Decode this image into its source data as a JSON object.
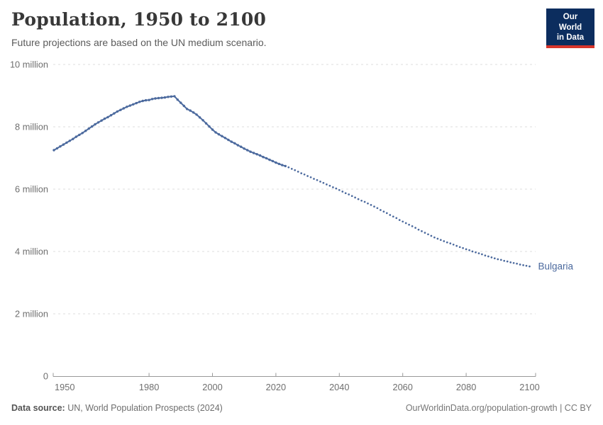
{
  "header": {
    "title": "Population, 1950 to 2100",
    "subtitle": "Future projections are based on the UN medium scenario.",
    "logo": {
      "line1": "Our World",
      "line2": "in Data",
      "bg_color": "#0C2D5E",
      "bar_color": "#D7352B"
    }
  },
  "footer": {
    "source_label": "Data source:",
    "source_text": " UN, World Population Prospects (2024)",
    "credit": "OurWorldinData.org/population-growth | CC BY"
  },
  "chart_data": {
    "type": "line",
    "title": "Population, 1950 to 2100",
    "subtitle": "Future projections are based on the UN medium scenario.",
    "entity": "Bulgaria",
    "end_label": "Bulgaria",
    "line_color": "#4C6A9E",
    "grid_color": "#dcdcdc",
    "axis_color": "#999999",
    "units": "people (millions)",
    "x_domain": [
      1950,
      2100
    ],
    "y_domain_millions": [
      0,
      10
    ],
    "x_ticks": [
      1950,
      1980,
      2000,
      2020,
      2040,
      2060,
      2080,
      2100
    ],
    "y_ticks": [
      {
        "value": 0,
        "label": "0"
      },
      {
        "value": 2,
        "label": "2 million"
      },
      {
        "value": 4,
        "label": "4 million"
      },
      {
        "value": 6,
        "label": "6 million"
      },
      {
        "value": 8,
        "label": "8 million"
      },
      {
        "value": 10,
        "label": "10 million"
      }
    ],
    "series": [
      {
        "name": "Bulgaria (estimates)",
        "style": "solid",
        "start_year": 1950,
        "values_millions": [
          7.25,
          7.31,
          7.37,
          7.43,
          7.49,
          7.55,
          7.61,
          7.68,
          7.74,
          7.8,
          7.87,
          7.94,
          8.01,
          8.08,
          8.14,
          8.2,
          8.26,
          8.31,
          8.37,
          8.43,
          8.49,
          8.54,
          8.59,
          8.64,
          8.68,
          8.72,
          8.76,
          8.8,
          8.83,
          8.85,
          8.86,
          8.89,
          8.91,
          8.92,
          8.93,
          8.94,
          8.96,
          8.97,
          8.98,
          8.87,
          8.77,
          8.67,
          8.57,
          8.52,
          8.46,
          8.39,
          8.3,
          8.21,
          8.11,
          8.01,
          7.91,
          7.82,
          7.76,
          7.7,
          7.64,
          7.58,
          7.52,
          7.47,
          7.41,
          7.36,
          7.3,
          7.25,
          7.2,
          7.16,
          7.12,
          7.08,
          7.03,
          6.99,
          6.94,
          6.9,
          6.85,
          6.81,
          6.77,
          6.74
        ]
      },
      {
        "name": "Bulgaria (UN medium projection)",
        "style": "dotted",
        "start_year": 2023,
        "values_millions": [
          6.74,
          6.7,
          6.65,
          6.61,
          6.56,
          6.51,
          6.47,
          6.42,
          6.38,
          6.33,
          6.29,
          6.24,
          6.2,
          6.15,
          6.11,
          6.06,
          6.02,
          5.97,
          5.92,
          5.87,
          5.83,
          5.78,
          5.73,
          5.68,
          5.63,
          5.59,
          5.54,
          5.49,
          5.44,
          5.39,
          5.33,
          5.28,
          5.23,
          5.17,
          5.12,
          5.07,
          5.01,
          4.96,
          4.91,
          4.86,
          4.81,
          4.76,
          4.7,
          4.65,
          4.6,
          4.55,
          4.5,
          4.45,
          4.41,
          4.37,
          4.33,
          4.29,
          4.26,
          4.22,
          4.18,
          4.14,
          4.11,
          4.07,
          4.04,
          4.0,
          3.97,
          3.94,
          3.91,
          3.87,
          3.84,
          3.81,
          3.78,
          3.75,
          3.73,
          3.7,
          3.68,
          3.65,
          3.63,
          3.61,
          3.58,
          3.56,
          3.54,
          3.52
        ]
      }
    ]
  }
}
